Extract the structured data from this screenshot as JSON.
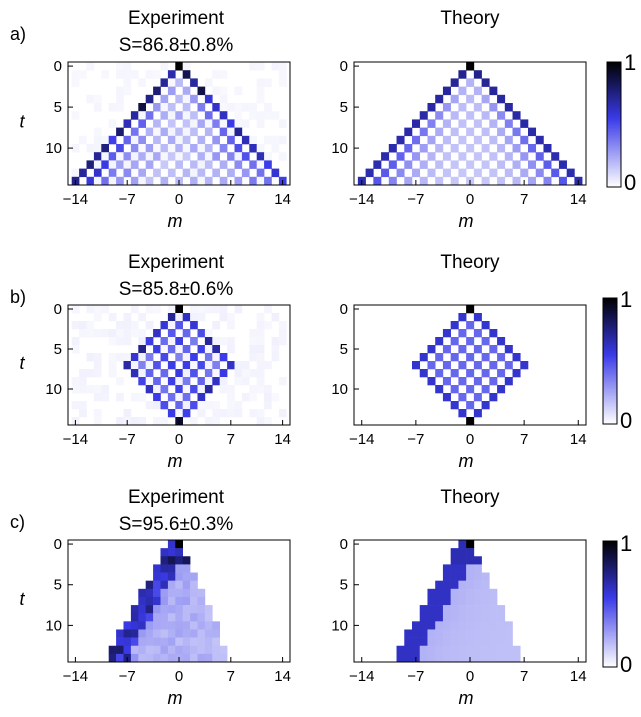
{
  "panels": [
    {
      "label": "a)",
      "experiment_title": "Experiment",
      "fidelity": "S=86.8±0.8%",
      "theory_title": "Theory"
    },
    {
      "label": "b)",
      "experiment_title": "Experiment",
      "fidelity": "S=85.8±0.6%",
      "theory_title": "Theory"
    },
    {
      "label": "c)",
      "experiment_title": "Experiment",
      "fidelity": "S=95.6±0.3%",
      "theory_title": "Theory"
    }
  ],
  "colors": {
    "low": "#ffffff",
    "mid": "#3a3ae8",
    "high": "#000000"
  },
  "chart_data": [
    {
      "type": "heatmap",
      "panel": "a) Experiment",
      "xlabel": "m",
      "ylabel": "t",
      "x_ticks": [
        -14,
        -7,
        0,
        7,
        14
      ],
      "y_ticks": [
        0,
        5,
        10
      ],
      "xlim": [
        -15,
        15
      ],
      "ylim": [
        0,
        14
      ],
      "colorbar": [
        0,
        1
      ],
      "pattern": "ballistic-symmetric"
    },
    {
      "type": "heatmap",
      "panel": "a) Theory",
      "xlabel": "m",
      "ylabel": "t",
      "x_ticks": [
        -14,
        -7,
        0,
        7,
        14
      ],
      "y_ticks": [
        0,
        5,
        10
      ],
      "xlim": [
        -15,
        15
      ],
      "ylim": [
        0,
        14
      ],
      "colorbar": [
        0,
        1
      ],
      "pattern": "ballistic-symmetric"
    },
    {
      "type": "heatmap",
      "panel": "b) Experiment",
      "xlabel": "m",
      "ylabel": "t",
      "x_ticks": [
        -14,
        -7,
        0,
        7,
        14
      ],
      "y_ticks": [
        0,
        5,
        10
      ],
      "xlim": [
        -15,
        15
      ],
      "ylim": [
        0,
        14
      ],
      "colorbar": [
        0,
        1
      ],
      "pattern": "diamond"
    },
    {
      "type": "heatmap",
      "panel": "b) Theory",
      "xlabel": "m",
      "ylabel": "t",
      "x_ticks": [
        -14,
        -7,
        0,
        7,
        14
      ],
      "y_ticks": [
        0,
        5,
        10
      ],
      "xlim": [
        -15,
        15
      ],
      "ylim": [
        0,
        14
      ],
      "colorbar": [
        0,
        1
      ],
      "pattern": "diamond"
    },
    {
      "type": "heatmap",
      "panel": "c) Experiment",
      "xlabel": "m",
      "ylabel": "t",
      "x_ticks": [
        -14,
        -7,
        0,
        7,
        14
      ],
      "y_ticks": [
        0,
        5,
        10
      ],
      "xlim": [
        -15,
        15
      ],
      "ylim": [
        0,
        14
      ],
      "colorbar": [
        0,
        1
      ],
      "pattern": "asymmetric-left"
    },
    {
      "type": "heatmap",
      "panel": "c) Theory",
      "xlabel": "m",
      "ylabel": "t",
      "x_ticks": [
        -14,
        -7,
        0,
        7,
        14
      ],
      "y_ticks": [
        0,
        5,
        10
      ],
      "xlim": [
        -15,
        15
      ],
      "ylim": [
        0,
        14
      ],
      "colorbar": [
        0,
        1
      ],
      "pattern": "asymmetric-left"
    }
  ]
}
